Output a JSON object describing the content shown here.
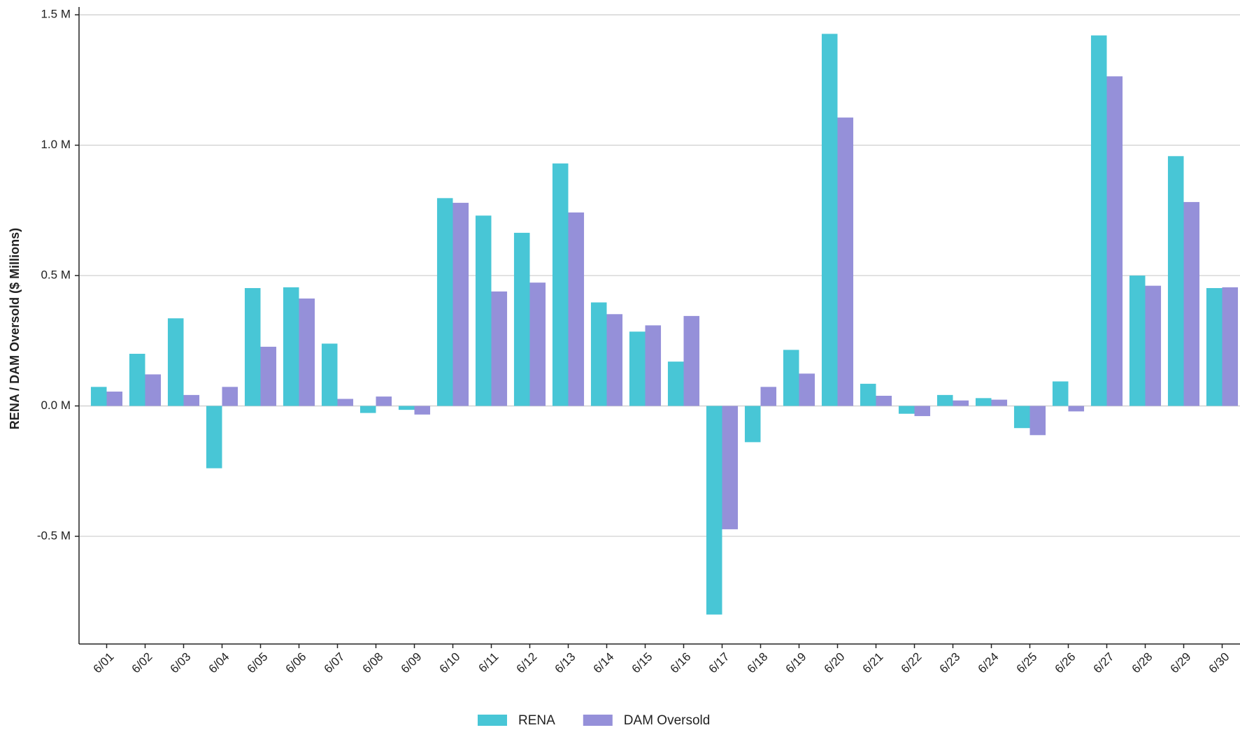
{
  "chart_data": {
    "type": "bar",
    "y_label": "RENA / DAM Oversold ($ Millions)",
    "categories": [
      "6/01",
      "6/02",
      "6/03",
      "6/04",
      "6/05",
      "6/06",
      "6/07",
      "6/08",
      "6/09",
      "6/10",
      "6/11",
      "6/12",
      "6/13",
      "6/14",
      "6/15",
      "6/16",
      "6/17",
      "6/18",
      "6/19",
      "6/20",
      "6/21",
      "6/22",
      "6/23",
      "6/24",
      "6/25",
      "6/26",
      "6/27",
      "6/28",
      "6/29",
      "6/30"
    ],
    "series": [
      {
        "name": "RENA",
        "color": "#48c6d6",
        "values": [
          0.073,
          0.2,
          0.336,
          -0.239,
          0.452,
          0.455,
          0.239,
          -0.027,
          -0.015,
          0.797,
          0.73,
          0.664,
          0.93,
          0.397,
          0.285,
          0.17,
          -0.8,
          -0.139,
          0.215,
          1.427,
          0.085,
          -0.03,
          0.042,
          0.03,
          -0.085,
          0.094,
          1.421,
          0.5,
          0.958,
          0.452
        ]
      },
      {
        "name": "DAM Oversold",
        "color": "#9590d9",
        "values": [
          0.055,
          0.121,
          0.042,
          0.073,
          0.227,
          0.412,
          0.027,
          0.036,
          -0.033,
          0.779,
          0.439,
          0.473,
          0.742,
          0.352,
          0.309,
          0.345,
          -0.473,
          0.073,
          0.124,
          1.106,
          0.039,
          -0.039,
          0.021,
          0.024,
          -0.112,
          -0.021,
          1.264,
          0.461,
          0.782,
          0.455
        ]
      }
    ],
    "ylim": [
      -0.913,
      1.53
    ],
    "yticks": [
      {
        "value": -0.5,
        "label": "-0.5 M"
      },
      {
        "value": 0,
        "label": "0.0 M"
      },
      {
        "value": 0.5,
        "label": "0.5 M"
      },
      {
        "value": 1,
        "label": "1.0 M"
      },
      {
        "value": 1.5,
        "label": "1.5 M"
      }
    ],
    "grid": true,
    "legend": "bottom"
  }
}
